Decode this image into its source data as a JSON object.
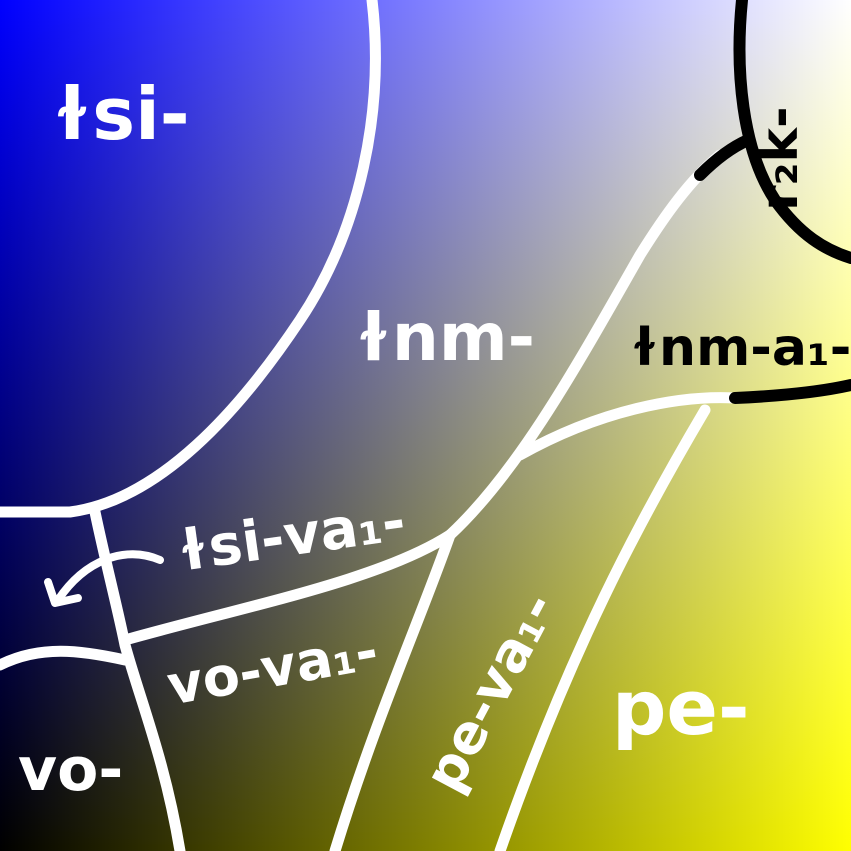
{
  "colors": {
    "top_left": "#0000ff",
    "bottom_left": "#000000",
    "top_right": "#ffffff",
    "bottom_right": "#ffff00",
    "boundary_main": "#ffffff",
    "boundary_corner": "#000000"
  },
  "regions": {
    "tsi": "ɫsi-",
    "tnm": "ɫnm-",
    "tnm_a1": "ɫnm-a₁-",
    "rk2": "r₂k-",
    "tsi_va1": "ɫsi-va₁-",
    "vo_va1": "vo-va₁-",
    "pe_va1": "pe-va₁-",
    "pe": "pe-",
    "vo": "vo-"
  },
  "icons": {
    "arrow": "curved-arrow-icon"
  }
}
